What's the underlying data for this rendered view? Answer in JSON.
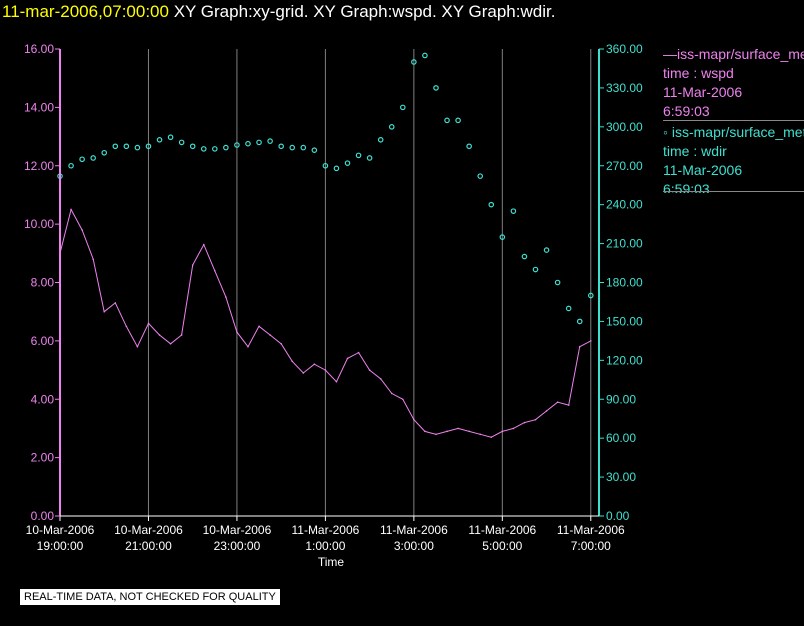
{
  "header": {
    "timestamp": "11-mar-2006,07:00:00",
    "titles": "XY Graph:xy-grid.  XY Graph:wspd.  XY Graph:wdir."
  },
  "legend": {
    "wspd": {
      "name": "iss-mapr/surface_met",
      "var": "time : wspd",
      "date": "11-Mar-2006",
      "time": "6:59:03"
    },
    "wdir": {
      "name": "iss-mapr/surface_met",
      "var": "time : wdir",
      "date": "11-Mar-2006",
      "time": "6:59:03"
    }
  },
  "notice": "REAL-TIME DATA, NOT CHECKED FOR QUALITY",
  "colors": {
    "wspd": "#ee82ee",
    "wdir": "#40e0d0",
    "axis_label": "#ffffff",
    "grid": "#808080"
  },
  "chart_data": {
    "type": "line",
    "title": "XY Graph:xy-grid.  XY Graph:wspd.  XY Graph:wdir.",
    "xlabel": "Time",
    "x_unit": "hours since 10-Mar-2006 19:00:00",
    "xlim": [
      0,
      12.05
    ],
    "x_ticks": [
      {
        "x": 0,
        "date": "10-Mar-2006",
        "time": "19:00:00"
      },
      {
        "x": 2,
        "date": "10-Mar-2006",
        "time": "21:00:00"
      },
      {
        "x": 4,
        "date": "10-Mar-2006",
        "time": "23:00:00"
      },
      {
        "x": 6,
        "date": "11-Mar-2006",
        "time": "1:00:00"
      },
      {
        "x": 8,
        "date": "11-Mar-2006",
        "time": "3:00:00"
      },
      {
        "x": 10,
        "date": "11-Mar-2006",
        "time": "5:00:00"
      },
      {
        "x": 12,
        "date": "11-Mar-2006",
        "time": "7:00:00"
      }
    ],
    "left_axis": {
      "series": "wspd",
      "ylim": [
        0,
        16
      ],
      "ticks": [
        "0.00",
        "2.00",
        "4.00",
        "6.00",
        "8.00",
        "10.00",
        "12.00",
        "14.00",
        "16.00"
      ]
    },
    "right_axis": {
      "series": "wdir",
      "ylim": [
        0,
        360
      ],
      "ticks": [
        "0.00",
        "30.00",
        "60.00",
        "90.00",
        "120.00",
        "150.00",
        "180.00",
        "210.00",
        "240.00",
        "270.00",
        "300.00",
        "330.00",
        "360.00"
      ]
    },
    "series": [
      {
        "name": "wspd",
        "style": "line",
        "axis": "left",
        "x": [
          0,
          0.25,
          0.5,
          0.75,
          1,
          1.25,
          1.5,
          1.75,
          2,
          2.25,
          2.5,
          2.75,
          3,
          3.25,
          3.5,
          3.75,
          4,
          4.25,
          4.5,
          4.75,
          5,
          5.25,
          5.5,
          5.75,
          6,
          6.25,
          6.5,
          6.75,
          7,
          7.25,
          7.5,
          7.75,
          8,
          8.25,
          8.5,
          8.75,
          9,
          9.25,
          9.5,
          9.75,
          10,
          10.25,
          10.5,
          10.75,
          11,
          11.25,
          11.5,
          11.75,
          12
        ],
        "y": [
          9.0,
          10.5,
          9.8,
          8.8,
          7.0,
          7.3,
          6.5,
          5.8,
          6.6,
          6.2,
          5.9,
          6.2,
          8.6,
          9.3,
          8.4,
          7.5,
          6.3,
          5.8,
          6.5,
          6.2,
          5.9,
          5.3,
          4.9,
          5.2,
          5.0,
          4.6,
          5.4,
          5.6,
          5.0,
          4.7,
          4.2,
          4.0,
          3.3,
          2.9,
          2.8,
          2.9,
          3.0,
          2.9,
          2.8,
          2.7,
          2.9,
          3.0,
          3.2,
          3.3,
          3.6,
          3.9,
          3.8,
          5.8,
          6.0
        ]
      },
      {
        "name": "wdir",
        "style": "scatter",
        "axis": "right",
        "x": [
          0,
          0.25,
          0.5,
          0.75,
          1,
          1.25,
          1.5,
          1.75,
          2,
          2.25,
          2.5,
          2.75,
          3,
          3.25,
          3.5,
          3.75,
          4,
          4.25,
          4.5,
          4.75,
          5,
          5.25,
          5.5,
          5.75,
          6,
          6.25,
          6.5,
          6.75,
          7,
          7.25,
          7.5,
          7.75,
          8,
          8.25,
          8.5,
          8.75,
          9,
          9.25,
          9.5,
          9.75,
          10,
          10.25,
          10.5,
          10.75,
          11,
          11.25,
          11.5,
          11.75,
          12
        ],
        "y": [
          262,
          270,
          275,
          276,
          280,
          285,
          285,
          284,
          285,
          290,
          292,
          288,
          285,
          283,
          283,
          284,
          286,
          287,
          288,
          289,
          285,
          284,
          284,
          282,
          270,
          268,
          272,
          278,
          276,
          290,
          300,
          315,
          350,
          355,
          330,
          305,
          305,
          285,
          262,
          240,
          215,
          235,
          200,
          190,
          205,
          180,
          160,
          150,
          170
        ]
      }
    ]
  }
}
